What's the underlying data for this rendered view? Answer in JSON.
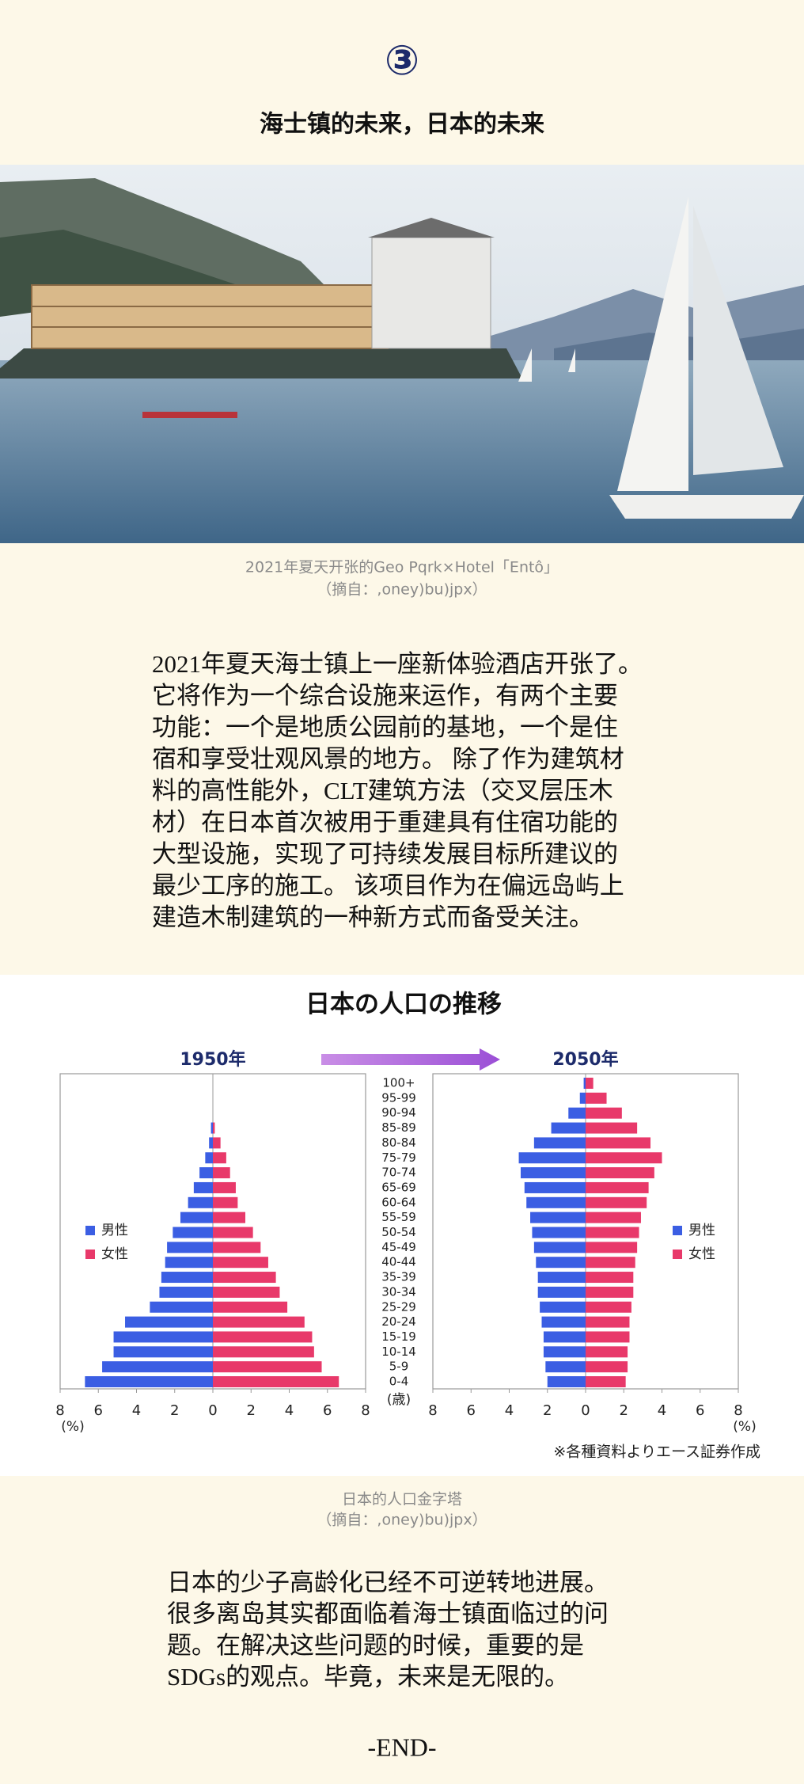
{
  "header": {
    "number": "③",
    "title": "海士镇的未来，日本的未来"
  },
  "photo_caption": [
    "2021年夏天开张的Geo Pqrk×Hotel「Entô」",
    "（摘自：,oney)bu)jpx）"
  ],
  "paragraph1": [
    "2021年夏天海士镇上一座新体验酒店开张了。",
    "它将作为一个综合设施来运作，有两个主要",
    "功能：一个是地质公园前的基地，一个是住",
    "宿和享受壮观风景的地方。 除了作为建筑材",
    "料的高性能外，CLT建筑方法（交叉层压木",
    "材）在日本首次被用于重建具有住宿功能的",
    "大型设施，实现了可持续发展目标所建议的",
    "最少工序的施工。 该项目作为在偏远岛屿上",
    "建造木制建筑的一种新方式而备受关注。"
  ],
  "figure": {
    "title": "日本の人口の推移",
    "note": "※各種資料よりエース証券作成",
    "age_unit": "(歳)",
    "categories": [
      "0-4",
      "5-9",
      "10-14",
      "15-19",
      "20-24",
      "25-29",
      "30-34",
      "35-39",
      "40-44",
      "45-49",
      "50-54",
      "55-59",
      "60-64",
      "65-69",
      "70-74",
      "75-79",
      "80-84",
      "85-89",
      "90-94",
      "95-99",
      "100+"
    ]
  },
  "chart_data": [
    {
      "type": "pyramid",
      "title": "1950年",
      "xlabel": "(%)",
      "xlim": [
        -8,
        8
      ],
      "xticks": [
        {
          "value": -8,
          "label": "8"
        },
        {
          "value": -6,
          "label": "6"
        },
        {
          "value": -4,
          "label": "4"
        },
        {
          "value": -2,
          "label": "2"
        },
        0,
        2,
        4,
        6,
        8
      ],
      "series": [
        {
          "name": "男性",
          "color": "#3b5ee3",
          "values": [
            6.7,
            5.8,
            5.2,
            5.2,
            4.6,
            3.3,
            2.8,
            2.7,
            2.5,
            2.4,
            2.1,
            1.7,
            1.3,
            1.0,
            0.7,
            0.4,
            0.2,
            0.1,
            0,
            0,
            0
          ]
        },
        {
          "name": "女性",
          "color": "#e8396a",
          "values": [
            6.6,
            5.7,
            5.3,
            5.2,
            4.8,
            3.9,
            3.5,
            3.3,
            2.9,
            2.5,
            2.1,
            1.7,
            1.3,
            1.2,
            0.9,
            0.7,
            0.4,
            0.1,
            0,
            0,
            0
          ]
        }
      ]
    },
    {
      "type": "pyramid",
      "title": "2050年",
      "xlabel": "(%)",
      "xlim": [
        -8,
        8
      ],
      "xticks": [
        {
          "value": -8,
          "label": "8"
        },
        {
          "value": -6,
          "label": "6"
        },
        {
          "value": -4,
          "label": "4"
        },
        {
          "value": -2,
          "label": "2"
        },
        0,
        2,
        4,
        6,
        8
      ],
      "series": [
        {
          "name": "男性",
          "color": "#3b5ee3",
          "values": [
            2.0,
            2.1,
            2.2,
            2.2,
            2.3,
            2.4,
            2.5,
            2.5,
            2.6,
            2.7,
            2.8,
            2.9,
            3.1,
            3.2,
            3.4,
            3.5,
            2.7,
            1.8,
            0.9,
            0.3,
            0.1
          ]
        },
        {
          "name": "女性",
          "color": "#e8396a",
          "values": [
            2.1,
            2.2,
            2.2,
            2.3,
            2.3,
            2.4,
            2.5,
            2.5,
            2.6,
            2.7,
            2.8,
            2.9,
            3.2,
            3.3,
            3.6,
            4.0,
            3.4,
            2.7,
            1.9,
            1.1,
            0.4
          ]
        }
      ]
    }
  ],
  "figure_caption": [
    "日本的人口金字塔",
    "（摘自：,oney)bu)jpx）"
  ],
  "paragraph2": [
    "日本的少子高龄化已经不可逆转地进展。",
    "很多离岛其实都面临着海士镇面临过的问",
    "题。在解决这些问题的时候，重要的是",
    "SDGs的观点。毕竟，未来是无限的。"
  ],
  "footer": "-END-"
}
